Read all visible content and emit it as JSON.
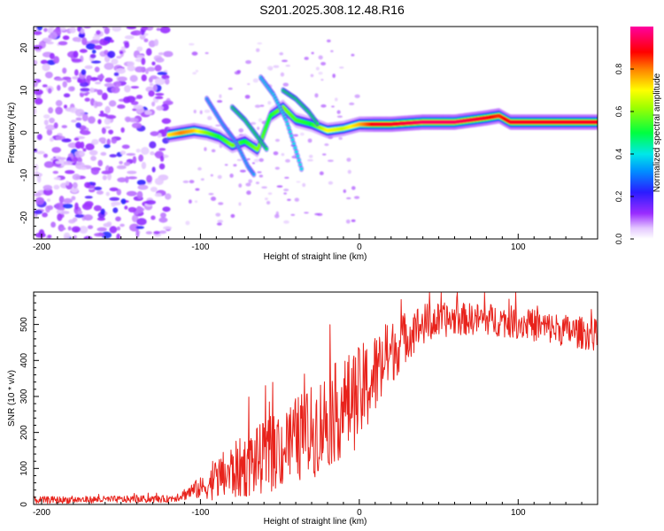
{
  "figure_title": "S201.2025.308.12.48.R16",
  "chart_data": [
    {
      "type": "heatmap",
      "title": "S201.2025.308.12.48.R16",
      "xlabel": "Height of straight line (km)",
      "ylabel": "Frequency (Hz)",
      "xlim": [
        -205,
        150
      ],
      "ylim": [
        -25,
        25
      ],
      "xticks": [
        -200,
        -100,
        0,
        100
      ],
      "yticks": [
        -20,
        -10,
        0,
        10,
        20
      ],
      "colorbar": {
        "label": "Normalized spectral amplitude",
        "range": [
          0.0,
          1.0
        ],
        "ticks": [
          0.0,
          0.2,
          0.4,
          0.6,
          0.8
        ],
        "colormap": "rainbow (white-violet-blue-cyan-green-yellow-red-magenta)"
      },
      "ridge": {
        "description": "Dominant frequency ridge vs height",
        "x": [
          -120,
          -112,
          -104,
          -96,
          -88,
          -80,
          -72,
          -64,
          -56,
          -48,
          -40,
          -30,
          -20,
          -10,
          0,
          10,
          20,
          40,
          60,
          80,
          88,
          95,
          105,
          120,
          135,
          150
        ],
        "freq": [
          -0.5,
          0,
          0.5,
          0,
          -1,
          -3,
          -2,
          -4,
          4,
          6,
          3,
          2,
          0.5,
          1,
          2,
          2,
          2,
          2.5,
          2.5,
          3.5,
          4,
          2.5,
          2.5,
          2.5,
          2.5,
          2.5
        ],
        "amplitude": [
          0.7,
          0.8,
          0.75,
          0.6,
          0.5,
          0.6,
          0.5,
          0.6,
          0.5,
          0.6,
          0.55,
          0.5,
          0.7,
          0.65,
          0.75,
          0.9,
          0.9,
          0.95,
          0.95,
          0.9,
          0.85,
          0.9,
          0.9,
          0.9,
          0.9,
          0.9
        ]
      },
      "noise_region": {
        "x_range": [
          -205,
          -120
        ],
        "freq_range": [
          -25,
          25
        ],
        "amplitude": 0.2
      }
    },
    {
      "type": "line",
      "title": "",
      "xlabel": "Height of straight line (km)",
      "ylabel": "SNR (10 * v/v)",
      "xlim": [
        -205,
        150
      ],
      "ylim": [
        0,
        590
      ],
      "xticks": [
        -200,
        -100,
        0,
        100
      ],
      "yticks": [
        0,
        100,
        200,
        300,
        400,
        500
      ],
      "series": [
        {
          "name": "SNR",
          "color": "#e8231c",
          "trend_x": [
            -205,
            -120,
            -112,
            -104,
            -96,
            -90,
            -80,
            -70,
            -60,
            -50,
            -40,
            -30,
            -20,
            -10,
            0,
            10,
            20,
            30,
            40,
            50,
            60,
            80,
            100,
            120,
            150
          ],
          "trend_y": [
            12,
            15,
            25,
            40,
            50,
            70,
            90,
            110,
            130,
            150,
            180,
            200,
            240,
            270,
            300,
            360,
            420,
            470,
            500,
            510,
            515,
            515,
            505,
            490,
            470
          ],
          "noise_amplitude": [
            10,
            10,
            15,
            25,
            35,
            60,
            80,
            90,
            100,
            110,
            120,
            130,
            140,
            140,
            140,
            120,
            90,
            70,
            60,
            50,
            45,
            45,
            45,
            45,
            45
          ]
        }
      ]
    }
  ],
  "colors": {
    "snr_line": "#e8231c",
    "axis": "#000000",
    "background": "#ffffff"
  }
}
